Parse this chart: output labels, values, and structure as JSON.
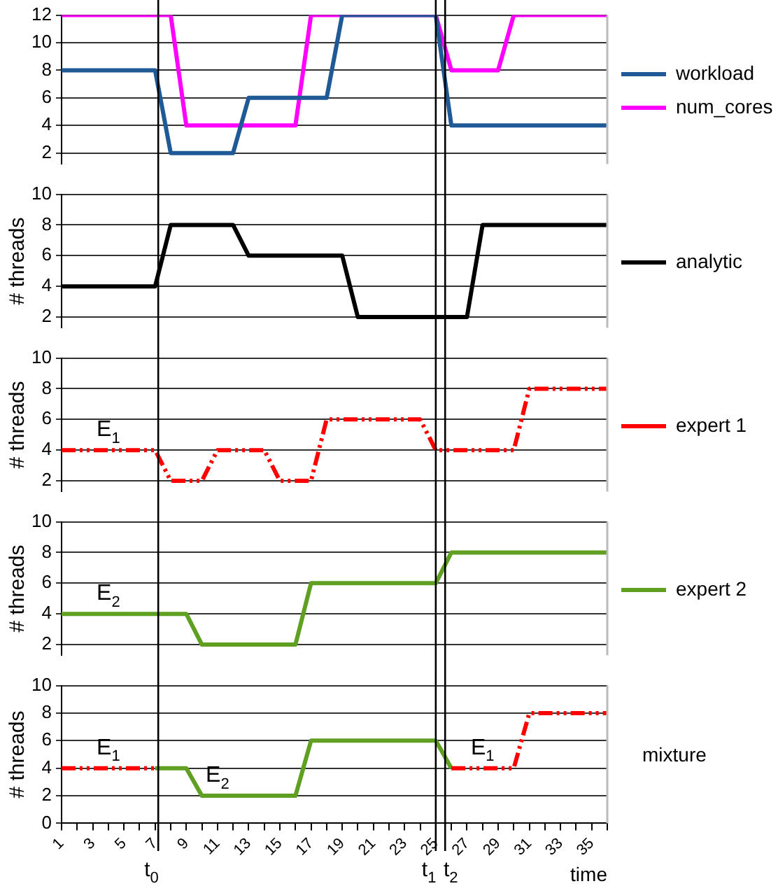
{
  "chart_data": [
    {
      "type": "line",
      "x": [
        1,
        2,
        3,
        4,
        5,
        6,
        7,
        8,
        9,
        10,
        11,
        12,
        13,
        14,
        15,
        16,
        17,
        18,
        19,
        20,
        21,
        22,
        23,
        24,
        25,
        26,
        27,
        28,
        29,
        30,
        31,
        32,
        33,
        34,
        35,
        36
      ],
      "xlim": [
        1,
        36
      ],
      "ylim": [
        1.2,
        12
      ],
      "yticks": [
        2,
        4,
        6,
        8,
        10,
        12
      ],
      "grid": "y",
      "legend": "right",
      "tick_labels": "y",
      "series": [
        {
          "name": "workload",
          "color": "#1f5a96",
          "values": [
            8,
            8,
            8,
            8,
            8,
            8,
            8,
            2,
            2,
            2,
            2,
            2,
            6,
            6,
            6,
            6,
            6,
            6,
            12,
            12,
            12,
            12,
            12,
            12,
            12,
            4,
            4,
            4,
            4,
            4,
            4,
            4,
            4,
            4,
            4,
            4
          ]
        },
        {
          "name": "num_cores",
          "color": "#ff00ff",
          "values": [
            12,
            12,
            12,
            12,
            12,
            12,
            12,
            12,
            4,
            4,
            4,
            4,
            4,
            4,
            4,
            4,
            12,
            12,
            12,
            12,
            12,
            12,
            12,
            12,
            12,
            8,
            8,
            8,
            8,
            12,
            12,
            12,
            12,
            12,
            12,
            12
          ]
        }
      ],
      "ref_lines": [
        {
          "axis": "x",
          "value": 7.2
        },
        {
          "axis": "x",
          "value": 25.0
        },
        {
          "axis": "x",
          "value": 25.6
        }
      ]
    },
    {
      "type": "line",
      "x": [
        1,
        2,
        3,
        4,
        5,
        6,
        7,
        8,
        9,
        10,
        11,
        12,
        13,
        14,
        15,
        16,
        17,
        18,
        19,
        20,
        21,
        22,
        23,
        24,
        25,
        26,
        27,
        28,
        29,
        30,
        31,
        32,
        33,
        34,
        35,
        36
      ],
      "xlim": [
        1,
        36
      ],
      "ylim": [
        1.3,
        10
      ],
      "yticks": [
        2,
        4,
        6,
        8,
        10
      ],
      "ylabel": "# threads",
      "grid": "y",
      "legend": "right",
      "tick_labels": "y",
      "series": [
        {
          "name": "analytic",
          "color": "#000000",
          "values": [
            4,
            4,
            4,
            4,
            4,
            4,
            4,
            8,
            8,
            8,
            8,
            8,
            6,
            6,
            6,
            6,
            6,
            6,
            6,
            2,
            2,
            2,
            2,
            2,
            2,
            2,
            2,
            8,
            8,
            8,
            8,
            8,
            8,
            8,
            8,
            8
          ]
        }
      ],
      "ref_lines": [
        {
          "axis": "x",
          "value": 7.2
        },
        {
          "axis": "x",
          "value": 25.0
        },
        {
          "axis": "x",
          "value": 25.6
        }
      ]
    },
    {
      "type": "line",
      "x": [
        1,
        2,
        3,
        4,
        5,
        6,
        7,
        8,
        9,
        10,
        11,
        12,
        13,
        14,
        15,
        16,
        17,
        18,
        19,
        20,
        21,
        22,
        23,
        24,
        25,
        26,
        27,
        28,
        29,
        30,
        31,
        32,
        33,
        34,
        35,
        36
      ],
      "xlim": [
        1,
        36
      ],
      "ylim": [
        1.3,
        10
      ],
      "yticks": [
        2,
        4,
        6,
        8,
        10
      ],
      "ylabel": "# threads",
      "grid": "y",
      "legend": "right",
      "tick_labels": "y",
      "line_style": "dashed",
      "series": [
        {
          "name": "expert 1",
          "color": "#ff0000",
          "values": [
            4,
            4,
            4,
            4,
            4,
            4,
            4,
            2,
            2,
            2,
            4,
            4,
            4,
            4,
            2,
            2,
            2,
            6,
            6,
            6,
            6,
            6,
            6,
            6,
            4,
            4,
            4,
            4,
            4,
            4,
            8,
            8,
            8,
            8,
            8,
            8
          ]
        }
      ],
      "annotations": [
        {
          "text": "E$_{1}$",
          "x": 4,
          "y": 4
        }
      ],
      "ref_lines": [
        {
          "axis": "x",
          "value": 7.2
        },
        {
          "axis": "x",
          "value": 25.0
        },
        {
          "axis": "x",
          "value": 25.6
        }
      ]
    },
    {
      "type": "line",
      "x": [
        1,
        2,
        3,
        4,
        5,
        6,
        7,
        8,
        9,
        10,
        11,
        12,
        13,
        14,
        15,
        16,
        17,
        18,
        19,
        20,
        21,
        22,
        23,
        24,
        25,
        26,
        27,
        28,
        29,
        30,
        31,
        32,
        33,
        34,
        35,
        36
      ],
      "xlim": [
        1,
        36
      ],
      "ylim": [
        1.3,
        10
      ],
      "yticks": [
        2,
        4,
        6,
        8,
        10
      ],
      "ylabel": "# threads",
      "grid": "y",
      "legend": "right",
      "tick_labels": "y",
      "series": [
        {
          "name": "expert 2",
          "color": "#5fa022",
          "values": [
            4,
            4,
            4,
            4,
            4,
            4,
            4,
            4,
            4,
            2,
            2,
            2,
            2,
            2,
            2,
            2,
            6,
            6,
            6,
            6,
            6,
            6,
            6,
            6,
            6,
            8,
            8,
            8,
            8,
            8,
            8,
            8,
            8,
            8,
            8,
            8
          ]
        }
      ],
      "annotations": [
        {
          "text": "E$_{2}$",
          "x": 4,
          "y": 4
        }
      ],
      "ref_lines": [
        {
          "axis": "x",
          "value": 7.2
        },
        {
          "axis": "x",
          "value": 25.0
        },
        {
          "axis": "x",
          "value": 25.6
        }
      ]
    },
    {
      "type": "line",
      "x": [
        1,
        2,
        3,
        4,
        5,
        6,
        7,
        8,
        9,
        10,
        11,
        12,
        13,
        14,
        15,
        16,
        17,
        18,
        19,
        20,
        21,
        22,
        23,
        24,
        25,
        26,
        27,
        28,
        29,
        30,
        31,
        32,
        33,
        34,
        35,
        36
      ],
      "xlim": [
        1,
        36
      ],
      "xticks": [
        1,
        {
          "value": 2,
          "label": null
        },
        3,
        {
          "value": 4,
          "label": null
        },
        5,
        {
          "value": 6,
          "label": null
        },
        7,
        {
          "value": 8,
          "label": null
        },
        9,
        {
          "value": 10,
          "label": null
        },
        11,
        {
          "value": 12,
          "label": null
        },
        13,
        {
          "value": 14,
          "label": null
        },
        15,
        {
          "value": 16,
          "label": null
        },
        17,
        {
          "value": 18,
          "label": null
        },
        19,
        {
          "value": 20,
          "label": null
        },
        21,
        {
          "value": 22,
          "label": null
        },
        23,
        {
          "value": 24,
          "label": null
        },
        25,
        {
          "value": 26,
          "label": null
        },
        27,
        {
          "value": 28,
          "label": null
        },
        29,
        {
          "value": 30,
          "label": null
        },
        31,
        {
          "value": 32,
          "label": null
        },
        33,
        {
          "value": 34,
          "label": null
        },
        35,
        {
          "value": 36,
          "label": null
        }
      ],
      "ylim": [
        0,
        10
      ],
      "yticks": [
        0,
        2,
        4,
        6,
        8,
        10
      ],
      "ylabel": "# threads",
      "xlabel": "time",
      "grid": "y",
      "series": [
        {
          "color": "#ff0000",
          "line_style": "dashed",
          "values": [
            4,
            4,
            4,
            4,
            4,
            4,
            4,
            null,
            null,
            null,
            null,
            null,
            null,
            null,
            null,
            null,
            null,
            null,
            null,
            null,
            null,
            null,
            null,
            null,
            null,
            4,
            4,
            4,
            4,
            4,
            8,
            8,
            8,
            8,
            8,
            8
          ]
        },
        {
          "color": "#5fa022",
          "values": [
            null,
            null,
            null,
            null,
            null,
            null,
            4,
            4,
            4,
            2,
            2,
            2,
            2,
            2,
            2,
            2,
            6,
            6,
            6,
            6,
            6,
            6,
            6,
            6,
            6,
            4,
            null,
            null,
            null,
            null,
            null,
            null,
            null,
            null,
            null,
            null
          ]
        }
      ],
      "annotations": [
        "mixture",
        {
          "text": "E$_{1}$",
          "x": 4,
          "y": 4
        },
        {
          "text": "E$_{2}$",
          "x": 11,
          "y": 2
        },
        {
          "text": "E$_{1}$",
          "x": 28,
          "y": 4
        }
      ],
      "ref_lines": [
        {
          "axis": "x",
          "value": 7.2,
          "label": "t$_{0}$"
        },
        {
          "axis": "x",
          "value": 25.0,
          "label": "t$_{1}$"
        },
        {
          "axis": "x",
          "value": 25.6,
          "label": "t$_{2}$"
        }
      ]
    }
  ]
}
